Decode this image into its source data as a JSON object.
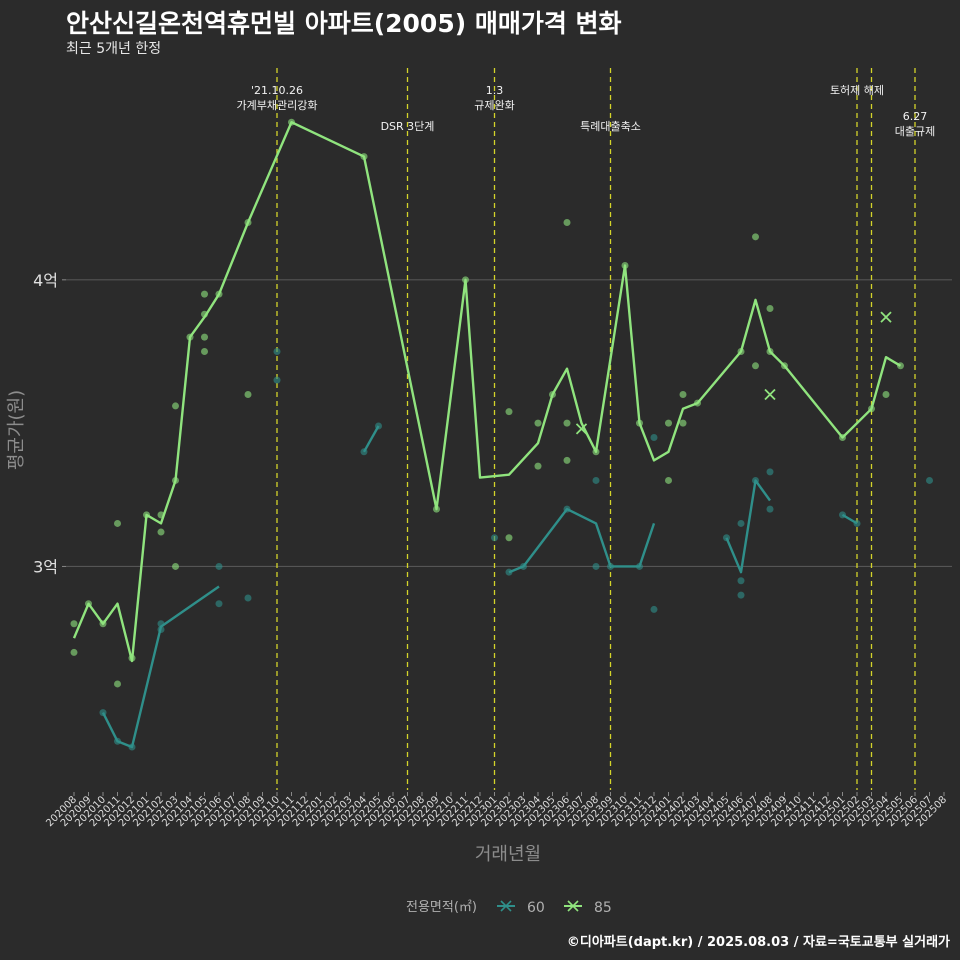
{
  "header": {
    "title": "안산신길온천역휴먼빌 아파트(2005) 매매가격 변화",
    "subtitle": "최근 5개년 한정",
    "caption": "©디아파트(dapt.kr) / 2025.08.03 / 자료=국토교통부 실거래가"
  },
  "colors": {
    "background": "#2b2b2b",
    "series_60": "#2f8f8a",
    "series_85": "#90e47e",
    "vline": "#d4d42a",
    "grid": "#555555"
  },
  "chart_data": {
    "type": "line",
    "xlabel": "거래년월",
    "ylabel": "평균가(원)",
    "y_unit": "억",
    "ylim": [
      2.22,
      4.76
    ],
    "yticks": [
      {
        "value": 3,
        "label": "3억"
      },
      {
        "value": 4,
        "label": "4억"
      }
    ],
    "categories": [
      "202008",
      "202009",
      "202010",
      "202011",
      "202012",
      "202101",
      "202102",
      "202103",
      "202104",
      "202105",
      "202106",
      "202107",
      "202108",
      "202109",
      "202110",
      "202111",
      "202112",
      "202201",
      "202202",
      "202203",
      "202204",
      "202205",
      "202206",
      "202207",
      "202208",
      "202209",
      "202210",
      "202211",
      "202212",
      "202301",
      "202302",
      "202303",
      "202304",
      "202305",
      "202306",
      "202307",
      "202308",
      "202309",
      "202310",
      "202311",
      "202312",
      "202401",
      "202402",
      "202403",
      "202404",
      "202405",
      "202406",
      "202407",
      "202408",
      "202409",
      "202410",
      "202411",
      "202412",
      "202501",
      "202502",
      "202503",
      "202504",
      "202505",
      "202506",
      "202507",
      "202508"
    ],
    "legend": {
      "title": "전용면적(㎡)",
      "position": "bottom"
    },
    "series": [
      {
        "name": "60",
        "line_segments": [
          [
            [
              "202010",
              2.49
            ],
            [
              "202011",
              2.39
            ],
            [
              "202012",
              2.37
            ],
            [
              "202102",
              2.79
            ],
            [
              "202106",
              2.93
            ]
          ],
          [
            [
              "202204",
              3.4
            ],
            [
              "202205",
              3.49
            ]
          ],
          [
            [
              "202302",
              2.98
            ],
            [
              "202303",
              3.0
            ],
            [
              "202306",
              3.2
            ],
            [
              "202308",
              3.15
            ],
            [
              "202309",
              3.0
            ],
            [
              "202311",
              3.0
            ],
            [
              "202312",
              3.15
            ]
          ],
          [
            [
              "202405",
              3.1
            ],
            [
              "202406",
              2.98
            ],
            [
              "202407",
              3.3
            ],
            [
              "202408",
              3.23
            ]
          ],
          [
            [
              "202501",
              3.18
            ],
            [
              "202502",
              3.15
            ]
          ]
        ],
        "points": [
          [
            "202010",
            2.49
          ],
          [
            "202011",
            2.39
          ],
          [
            "202012",
            2.37
          ],
          [
            "202102",
            2.8
          ],
          [
            "202102",
            2.78
          ],
          [
            "202106",
            3.0
          ],
          [
            "202106",
            2.87
          ],
          [
            "202108",
            2.89
          ],
          [
            "202110",
            3.75
          ],
          [
            "202110",
            3.65
          ],
          [
            "202204",
            3.4
          ],
          [
            "202205",
            3.49
          ],
          [
            "202301",
            3.1
          ],
          [
            "202302",
            2.98
          ],
          [
            "202303",
            3.0
          ],
          [
            "202306",
            3.2
          ],
          [
            "202308",
            3.3
          ],
          [
            "202308",
            3.0
          ],
          [
            "202309",
            3.0
          ],
          [
            "202311",
            3.0
          ],
          [
            "202312",
            2.85
          ],
          [
            "202312",
            3.45
          ],
          [
            "202405",
            3.1
          ],
          [
            "202406",
            2.95
          ],
          [
            "202406",
            2.9
          ],
          [
            "202406",
            3.15
          ],
          [
            "202407",
            3.3
          ],
          [
            "202408",
            3.33
          ],
          [
            "202408",
            3.2
          ],
          [
            "202501",
            3.18
          ],
          [
            "202502",
            3.15
          ],
          [
            "202507",
            3.3
          ]
        ],
        "cross_markers": []
      },
      {
        "name": "85",
        "line_segments": [
          [
            [
              "202008",
              2.75
            ],
            [
              "202009",
              2.87
            ],
            [
              "202010",
              2.8
            ],
            [
              "202011",
              2.87
            ],
            [
              "202012",
              2.67
            ],
            [
              "202101",
              3.18
            ],
            [
              "202102",
              3.15
            ],
            [
              "202103",
              3.3
            ],
            [
              "202104",
              3.8
            ],
            [
              "202105",
              3.87
            ],
            [
              "202106",
              3.95
            ],
            [
              "202108",
              4.2
            ],
            [
              "202111",
              4.55
            ],
            [
              "202204",
              4.43
            ],
            [
              "202209",
              3.2
            ],
            [
              "202211",
              4.0
            ],
            [
              "202212",
              3.31
            ],
            [
              "202302",
              3.32
            ],
            [
              "202304",
              3.43
            ],
            [
              "202305",
              3.6
            ],
            [
              "202306",
              3.69
            ],
            [
              "202307",
              3.5
            ],
            [
              "202308",
              3.4
            ],
            [
              "202310",
              4.05
            ],
            [
              "202311",
              3.5
            ],
            [
              "202312",
              3.37
            ],
            [
              "202401",
              3.4
            ],
            [
              "202402",
              3.55
            ],
            [
              "202403",
              3.57
            ],
            [
              "202406",
              3.75
            ],
            [
              "202407",
              3.93
            ],
            [
              "202408",
              3.75
            ],
            [
              "202409",
              3.7
            ],
            [
              "202501",
              3.45
            ],
            [
              "202503",
              3.55
            ],
            [
              "202504",
              3.73
            ],
            [
              "202505",
              3.7
            ]
          ]
        ],
        "points": [
          [
            "202008",
            2.8
          ],
          [
            "202008",
            2.7
          ],
          [
            "202009",
            2.87
          ],
          [
            "202010",
            2.8
          ],
          [
            "202011",
            3.15
          ],
          [
            "202011",
            2.59
          ],
          [
            "202012",
            2.68
          ],
          [
            "202101",
            3.18
          ],
          [
            "202102",
            3.18
          ],
          [
            "202102",
            3.12
          ],
          [
            "202103",
            3.56
          ],
          [
            "202103",
            3.3
          ],
          [
            "202103",
            3.0
          ],
          [
            "202104",
            3.8
          ],
          [
            "202105",
            3.95
          ],
          [
            "202105",
            3.88
          ],
          [
            "202105",
            3.8
          ],
          [
            "202105",
            3.75
          ],
          [
            "202106",
            3.95
          ],
          [
            "202108",
            4.2
          ],
          [
            "202108",
            3.6
          ],
          [
            "202111",
            4.55
          ],
          [
            "202204",
            4.43
          ],
          [
            "202209",
            3.2
          ],
          [
            "202211",
            4.0
          ],
          [
            "202302",
            3.54
          ],
          [
            "202302",
            3.1
          ],
          [
            "202304",
            3.5
          ],
          [
            "202304",
            3.35
          ],
          [
            "202305",
            3.6
          ],
          [
            "202306",
            4.2
          ],
          [
            "202306",
            3.5
          ],
          [
            "202306",
            3.37
          ],
          [
            "202308",
            3.4
          ],
          [
            "202310",
            4.05
          ],
          [
            "202311",
            3.5
          ],
          [
            "202401",
            3.5
          ],
          [
            "202401",
            3.3
          ],
          [
            "202402",
            3.6
          ],
          [
            "202402",
            3.5
          ],
          [
            "202403",
            3.57
          ],
          [
            "202406",
            3.75
          ],
          [
            "202407",
            4.15
          ],
          [
            "202407",
            3.7
          ],
          [
            "202408",
            3.9
          ],
          [
            "202408",
            3.75
          ],
          [
            "202409",
            3.7
          ],
          [
            "202501",
            3.45
          ],
          [
            "202503",
            3.55
          ],
          [
            "202504",
            3.6
          ],
          [
            "202505",
            3.7
          ]
        ],
        "cross_markers": [
          [
            "202307",
            3.48
          ],
          [
            "202408",
            3.6
          ],
          [
            "202504",
            3.87
          ]
        ]
      }
    ],
    "annotations": [
      {
        "month": "202110",
        "lines": [
          "'21.10.26",
          "가계부채관리강화"
        ],
        "row": 1
      },
      {
        "month": "202207",
        "lines": [
          "DSR 3단계"
        ],
        "row": 2
      },
      {
        "month": "202301",
        "lines": [
          "1.3",
          "규제완화"
        ],
        "row": 1
      },
      {
        "month": "202309",
        "lines": [
          "특례대출축소"
        ],
        "row": 2
      },
      {
        "month": "202502",
        "lines": [
          "토허제 해제"
        ],
        "row": 1,
        "hidden_line": false
      },
      {
        "month": "202503",
        "lines": [],
        "row": 1
      },
      {
        "month": "202506",
        "lines": [
          "6.27",
          "대출규제"
        ],
        "row": 2
      }
    ]
  }
}
